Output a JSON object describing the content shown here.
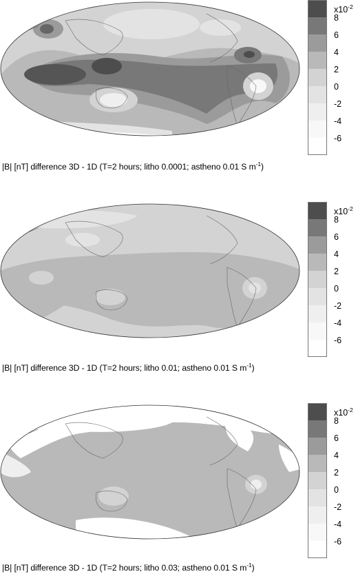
{
  "colorbar": {
    "scale_base": "x10",
    "scale_exp": "-2",
    "levels": [
      "8",
      "6",
      "4",
      "2",
      "0",
      "-2",
      "-4",
      "-6"
    ],
    "colors": [
      "#4d4d4d",
      "#787878",
      "#9b9b9b",
      "#b9b9b9",
      "#d3d3d3",
      "#e3e3e3",
      "#efefef",
      "#f8f8f8",
      "#ffffff"
    ]
  },
  "panels": [
    {
      "caption_main": "|B| [nT] difference 3D - 1D (T=2 hours; litho 0.0001; astheno 0.01 S m",
      "caption_exp": "-1",
      "caption_end": ")"
    },
    {
      "caption_main": "|B| [nT] difference 3D - 1D (T=2 hours; litho 0.01; astheno 0.01 S m",
      "caption_exp": "-1",
      "caption_end": ")"
    },
    {
      "caption_main": "|B| [nT] difference 3D - 1D (T=2 hours; litho 0.03; astheno 0.01 S m",
      "caption_exp": "-1",
      "caption_end": ")"
    }
  ]
}
